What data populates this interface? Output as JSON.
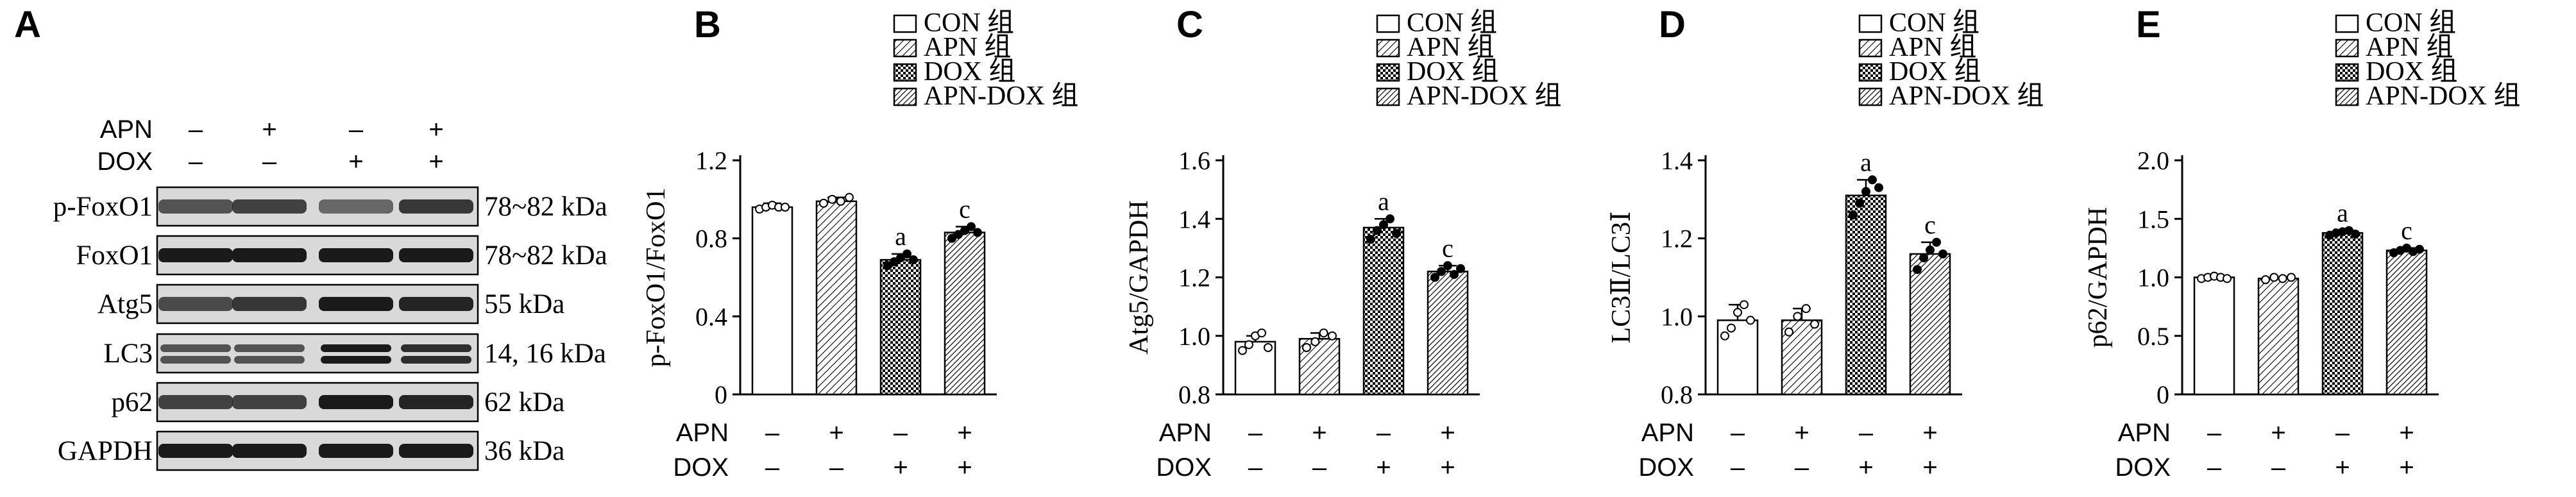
{
  "colors": {
    "ink": "#000000",
    "band": "#1a1a1a",
    "blot_bg": "#d9d9d9",
    "white_bar": "#ffffff"
  },
  "blot": {
    "panel_letter": "A",
    "treatments": [
      {
        "label": "APN",
        "signs": [
          "–",
          "+",
          "–",
          "+"
        ]
      },
      {
        "label": "DOX",
        "signs": [
          "–",
          "–",
          "+",
          "+"
        ]
      }
    ],
    "rows": [
      {
        "name": "p-FoxO1",
        "size": "78~82 kDa"
      },
      {
        "name": "FoxO1",
        "size": "78~82 kDa"
      },
      {
        "name": "Atg5",
        "size": "55 kDa"
      },
      {
        "name": "LC3",
        "size": "14, 16 kDa"
      },
      {
        "name": "p62",
        "size": "62 kDa"
      },
      {
        "name": "GAPDH",
        "size": "36 kDa"
      }
    ]
  },
  "legend": [
    "CON 组",
    "APN 组",
    "DOX 组",
    "APN-DOX 组"
  ],
  "treatment_labels": [
    "APN",
    "DOX"
  ],
  "treatment_signs": {
    "APN": [
      "–",
      "+",
      "–",
      "+"
    ],
    "DOX": [
      "–",
      "–",
      "+",
      "+"
    ]
  },
  "chart_data": [
    {
      "type": "bar",
      "panel": "B",
      "ylabel": "p-FoxO1/FoxO1",
      "ylim": [
        0,
        1.2
      ],
      "yticks": [
        "0",
        "0.4",
        "0.8",
        "1.2"
      ],
      "categories": [
        "CON 组",
        "APN 组",
        "DOX 组",
        "APN-DOX 组"
      ],
      "values": [
        0.96,
        0.99,
        0.69,
        0.83
      ],
      "errors": [
        0.02,
        0.02,
        0.03,
        0.03
      ],
      "annotations": [
        "",
        "",
        "a",
        "c"
      ],
      "points": [
        [
          0.95,
          0.96,
          0.97,
          0.96,
          0.96
        ],
        [
          0.98,
          1.0,
          0.99,
          1.01
        ],
        [
          0.66,
          0.68,
          0.7,
          0.72,
          0.69
        ],
        [
          0.8,
          0.82,
          0.84,
          0.86,
          0.83
        ]
      ]
    },
    {
      "type": "bar",
      "panel": "C",
      "ylabel": "Atg5/GAPDH",
      "ylim": [
        0.8,
        1.6
      ],
      "yticks": [
        "0.8",
        "1.0",
        "1.2",
        "1.4",
        "1.6"
      ],
      "categories": [
        "CON 组",
        "APN 组",
        "DOX 组",
        "APN-DOX 组"
      ],
      "values": [
        0.98,
        0.99,
        1.37,
        1.22
      ],
      "errors": [
        0.02,
        0.02,
        0.03,
        0.02
      ],
      "annotations": [
        "",
        "",
        "a",
        "c"
      ],
      "points": [
        [
          0.95,
          0.97,
          1.0,
          1.01,
          0.96
        ],
        [
          0.96,
          0.98,
          1.01,
          1.0
        ],
        [
          1.33,
          1.36,
          1.38,
          1.4,
          1.35
        ],
        [
          1.2,
          1.22,
          1.24,
          1.21,
          1.23
        ]
      ]
    },
    {
      "type": "bar",
      "panel": "D",
      "ylabel": "LC3Ⅱ/LC3Ⅰ",
      "ylim": [
        0.8,
        1.4
      ],
      "yticks": [
        "0.8",
        "1.0",
        "1.2",
        "1.4"
      ],
      "categories": [
        "CON 组",
        "APN 组",
        "DOX 组",
        "APN-DOX 组"
      ],
      "values": [
        0.99,
        0.99,
        1.31,
        1.16
      ],
      "errors": [
        0.04,
        0.03,
        0.04,
        0.03
      ],
      "annotations": [
        "",
        "",
        "a",
        "c"
      ],
      "points": [
        [
          0.95,
          0.97,
          1.01,
          1.03,
          0.99
        ],
        [
          0.96,
          1.0,
          1.02,
          0.98
        ],
        [
          1.26,
          1.29,
          1.32,
          1.35,
          1.33
        ],
        [
          1.12,
          1.15,
          1.17,
          1.19,
          1.16
        ]
      ]
    },
    {
      "type": "bar",
      "panel": "E",
      "ylabel": "p62/GAPDH",
      "ylim": [
        0,
        2.0
      ],
      "yticks": [
        "0",
        "0.5",
        "1.0",
        "1.5",
        "2.0"
      ],
      "categories": [
        "CON 组",
        "APN 组",
        "DOX 组",
        "APN-DOX 组"
      ],
      "values": [
        1.0,
        0.99,
        1.38,
        1.23
      ],
      "errors": [
        0.01,
        0.01,
        0.02,
        0.02
      ],
      "annotations": [
        "",
        "",
        "a",
        "c"
      ],
      "points": [
        [
          0.99,
          1.0,
          1.01,
          1.0,
          0.99
        ],
        [
          0.98,
          1.0,
          0.99,
          1.0
        ],
        [
          1.36,
          1.38,
          1.39,
          1.4,
          1.37
        ],
        [
          1.21,
          1.23,
          1.25,
          1.22,
          1.24
        ]
      ]
    }
  ]
}
